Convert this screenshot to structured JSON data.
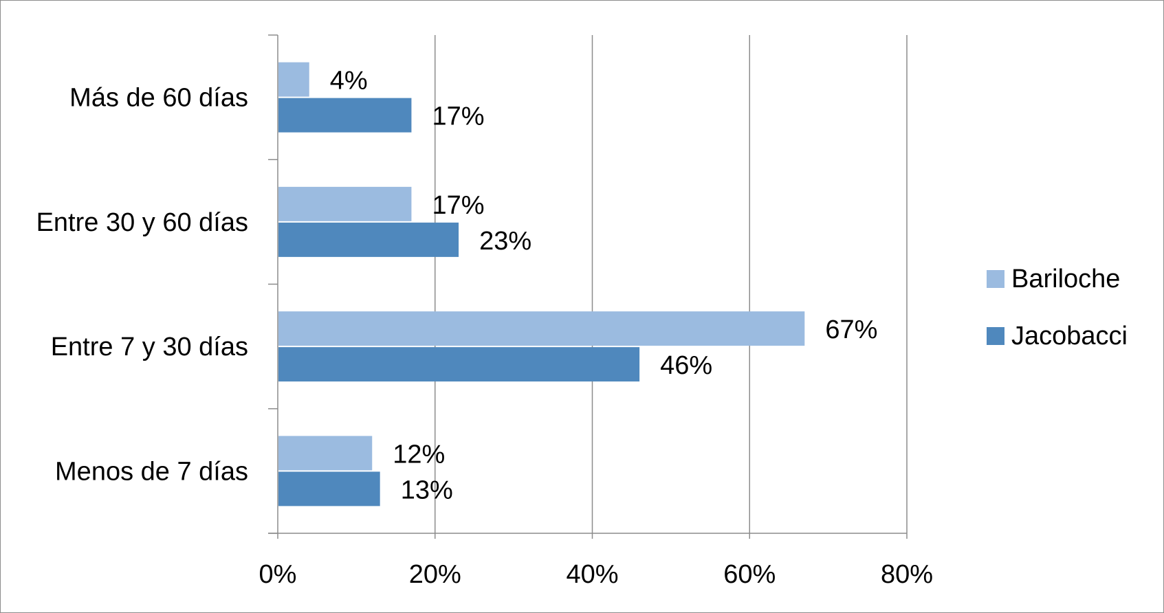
{
  "chart_data": {
    "type": "bar",
    "orientation": "horizontal",
    "categories": [
      "Más de 60 días",
      "Entre 30 y 60 días",
      "Entre 7 y 30 días",
      "Menos de 7 días"
    ],
    "series": [
      {
        "name": "Bariloche",
        "values": [
          4,
          17,
          67,
          12
        ],
        "labels": [
          "4%",
          "17%",
          "67%",
          "12%"
        ],
        "color": "#9BBBE0"
      },
      {
        "name": "Jacobacci",
        "values": [
          17,
          23,
          46,
          13
        ],
        "labels": [
          "17%",
          "23%",
          "46%",
          "13%"
        ],
        "color": "#4F88BD"
      }
    ],
    "xlim": [
      0,
      80
    ],
    "xticks": [
      0,
      20,
      40,
      60,
      80
    ],
    "xtick_labels": [
      "0%",
      "20%",
      "40%",
      "60%",
      "80%"
    ],
    "grid": "vertical",
    "legend": "right",
    "colors": {
      "gridline": "#8c8c8c",
      "axis": "#8c8c8c",
      "frame": "#8c8c8c"
    }
  }
}
